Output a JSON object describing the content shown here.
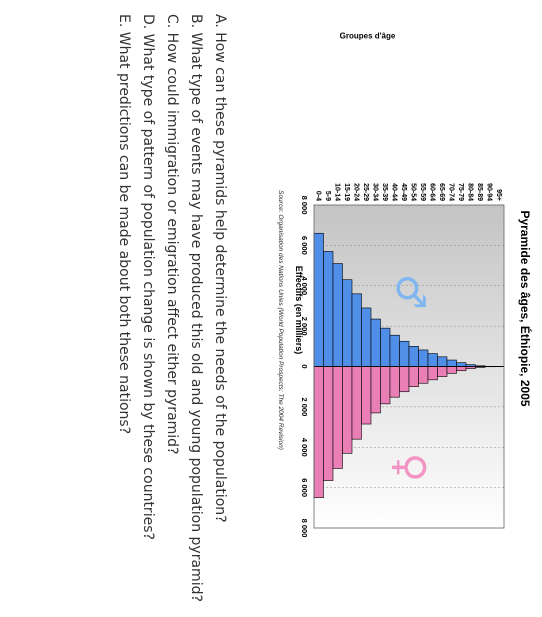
{
  "chart_data": {
    "type": "bar",
    "title": "Pyramide des âges, Éthiopie, 2005",
    "ylabel": "Groupes d'âge",
    "xlabel": "Effectifs (en milliers)",
    "source": "Source: Organisation des Nations Unies (World Population Prospects: The 2004 Revision)",
    "categories": [
      "0-4",
      "5-9",
      "10-14",
      "15-19",
      "20-24",
      "25-29",
      "30-34",
      "35-39",
      "40-44",
      "45-49",
      "50-54",
      "55-59",
      "60-64",
      "65-69",
      "70-74",
      "75-79",
      "80-84",
      "85-89",
      "90-94",
      "95+"
    ],
    "series": [
      {
        "name": "♂",
        "values": [
          6600,
          5700,
          5100,
          4300,
          3600,
          2900,
          2350,
          1900,
          1550,
          1250,
          1000,
          820,
          640,
          480,
          320,
          190,
          90,
          35,
          10,
          3
        ]
      },
      {
        "name": "♀",
        "values": [
          6500,
          5650,
          5050,
          4300,
          3600,
          2850,
          2300,
          1850,
          1520,
          1250,
          1000,
          830,
          660,
          500,
          340,
          210,
          105,
          45,
          12,
          4
        ]
      }
    ],
    "xticks": [
      "8 000",
      "6 000",
      "4 000",
      "2 000",
      "0",
      "2 000",
      "4 000",
      "6 000",
      "8 000"
    ],
    "xlim": [
      -8000,
      8000
    ],
    "grid": true,
    "legend": "symbols",
    "male_symbol": "♂",
    "female_symbol": "♀",
    "colors": {
      "male": "#4f8fe8",
      "female": "#ea7fb6",
      "plot_bg_start": "#c4c4c4",
      "plot_bg_end": "#ffffff"
    }
  },
  "questions": [
    "A. How can these pyramids help determine the needs of the population?",
    "B. What type of events may have produced this old and young population pyramid?",
    "C. How could immigration or emigration affect either pyramid?",
    "D. What type of pattern of population change is shown by these countries?",
    "E. What predictions can be made about both these nations?"
  ]
}
